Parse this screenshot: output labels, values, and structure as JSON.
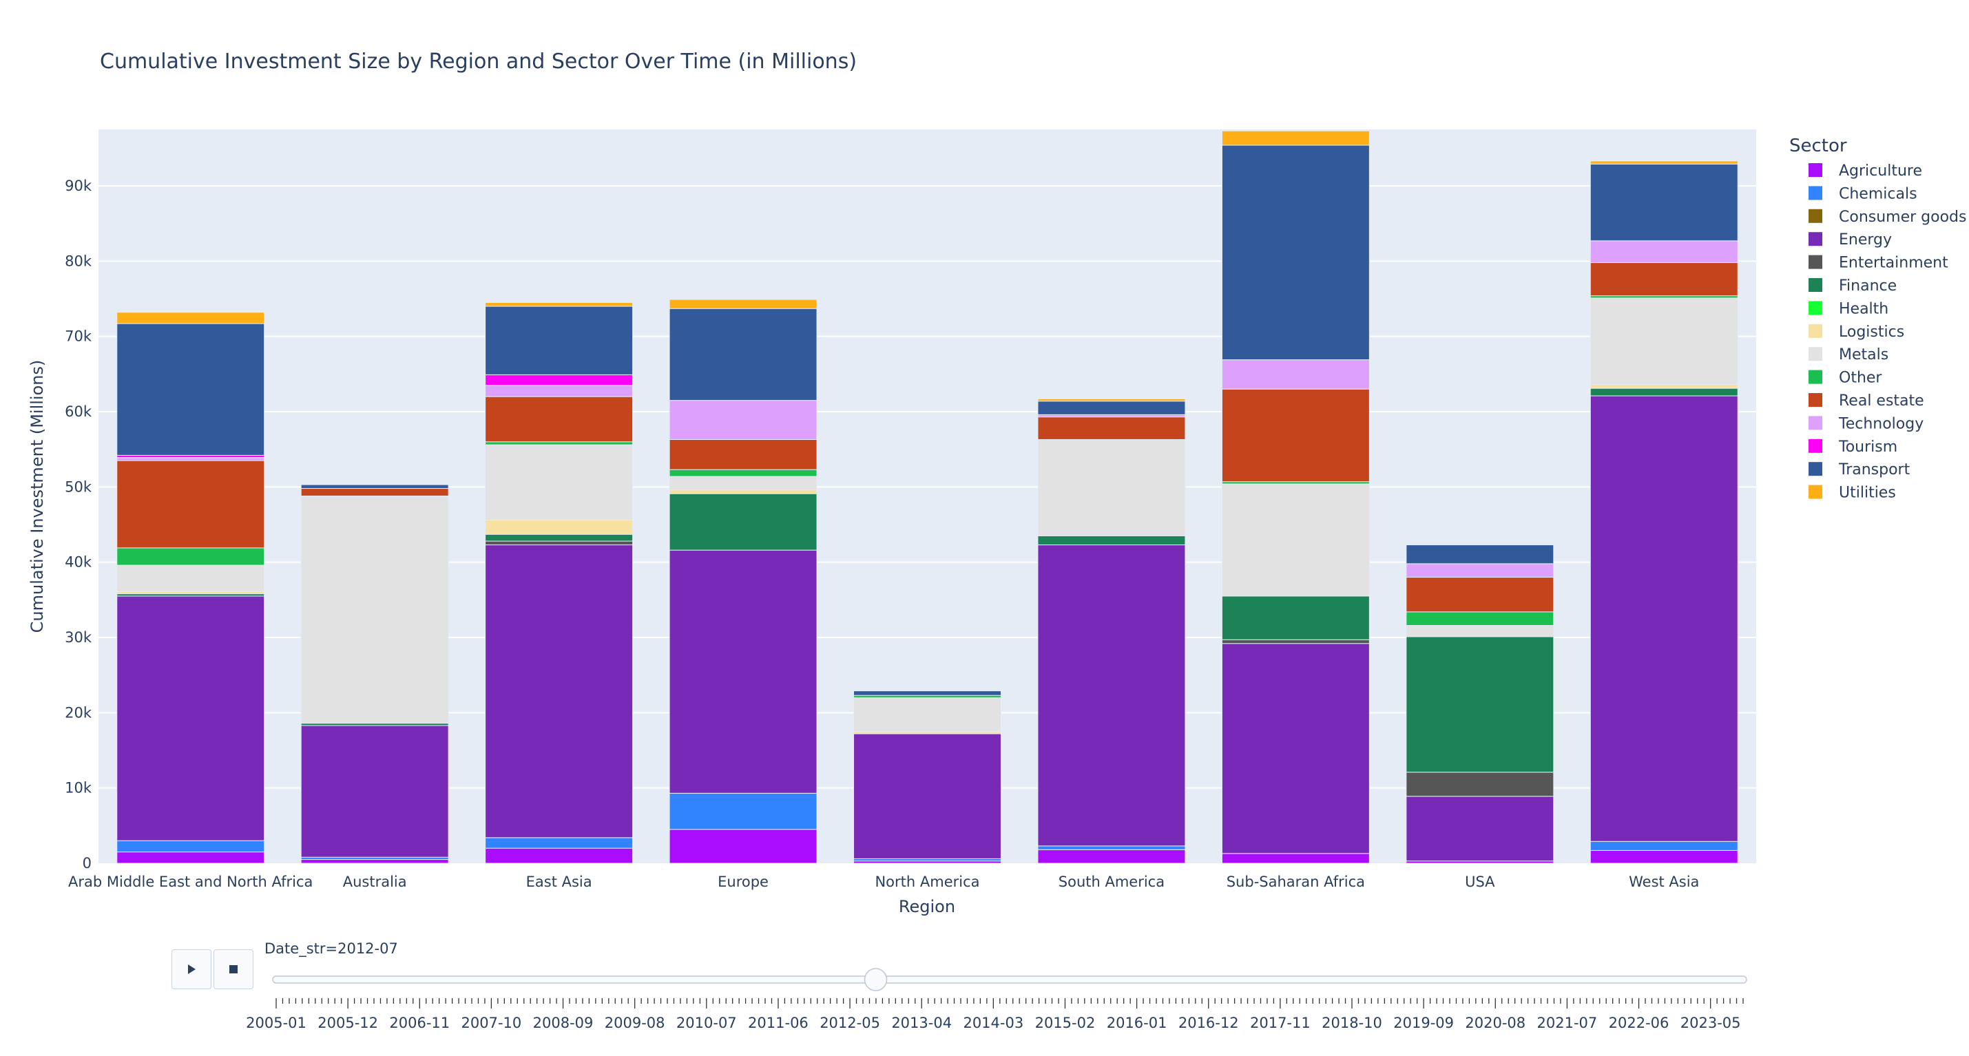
{
  "chart_data": {
    "type": "bar",
    "barmode": "stack",
    "title": "Cumulative Investment Size by Region and Sector Over Time (in Millions)",
    "xlabel": "Region",
    "ylabel": "Cumulative Investment (Millions)",
    "ylim": [
      0,
      97500
    ],
    "yticks": [
      0,
      10000,
      20000,
      30000,
      40000,
      50000,
      60000,
      70000,
      80000,
      90000
    ],
    "ytick_labels": [
      "0",
      "10k",
      "20k",
      "30k",
      "40k",
      "50k",
      "60k",
      "70k",
      "80k",
      "90k"
    ],
    "grid": true,
    "legend": {
      "title": "Sector",
      "placement": "right"
    },
    "categories": [
      "Arab Middle East and North Africa",
      "Australia",
      "East Asia",
      "Europe",
      "North America",
      "South America",
      "Sub-Saharan Africa",
      "USA",
      "West Asia"
    ],
    "series": [
      {
        "name": "Agriculture",
        "color": "#AA0DFE",
        "values": [
          1500,
          500,
          2000,
          4500,
          300,
          1800,
          1300,
          300,
          1700
        ]
      },
      {
        "name": "Chemicals",
        "color": "#3283FE",
        "values": [
          1500,
          300,
          1400,
          4800,
          300,
          500,
          0,
          0,
          1200
        ]
      },
      {
        "name": "Consumer goods",
        "color": "#85660D",
        "values": [
          0,
          0,
          0,
          0,
          0,
          0,
          0,
          0,
          0
        ]
      },
      {
        "name": "Energy",
        "color": "#782AB6",
        "values": [
          32500,
          17500,
          38900,
          32300,
          16600,
          40000,
          27900,
          8600,
          59200
        ]
      },
      {
        "name": "Entertainment",
        "color": "#565656",
        "values": [
          0,
          0,
          500,
          0,
          0,
          0,
          500,
          3200,
          0
        ]
      },
      {
        "name": "Finance",
        "color": "#1C8356",
        "values": [
          300,
          300,
          900,
          7500,
          0,
          1200,
          5800,
          18000,
          1000
        ]
      },
      {
        "name": "Health",
        "color": "#16FF32",
        "values": [
          0,
          0,
          0,
          0,
          0,
          0,
          0,
          0,
          0
        ]
      },
      {
        "name": "Logistics",
        "color": "#F7E1A0",
        "values": [
          300,
          0,
          1900,
          500,
          300,
          0,
          0,
          0,
          500
        ]
      },
      {
        "name": "Metals",
        "color": "#E2E2E2",
        "values": [
          3500,
          30200,
          10000,
          1800,
          4500,
          12800,
          14900,
          1500,
          11500
        ]
      },
      {
        "name": "Other",
        "color": "#1CBE4F",
        "values": [
          2300,
          0,
          400,
          900,
          300,
          0,
          300,
          1800,
          300
        ]
      },
      {
        "name": "Real estate",
        "color": "#C4451C",
        "values": [
          11600,
          1000,
          6000,
          4000,
          0,
          3000,
          12300,
          4600,
          4400
        ]
      },
      {
        "name": "Technology",
        "color": "#DEA0FD",
        "values": [
          400,
          0,
          1500,
          5200,
          0,
          300,
          3900,
          1800,
          2900
        ]
      },
      {
        "name": "Tourism",
        "color": "#FE00FA",
        "values": [
          300,
          0,
          1400,
          0,
          0,
          0,
          0,
          0,
          0
        ]
      },
      {
        "name": "Transport",
        "color": "#325A9B",
        "values": [
          17500,
          500,
          9100,
          12200,
          600,
          1800,
          28500,
          2500,
          10200
        ]
      },
      {
        "name": "Utilities",
        "color": "#FEAF16",
        "values": [
          1500,
          0,
          500,
          1200,
          0,
          300,
          1900,
          0,
          400
        ]
      }
    ]
  },
  "slider": {
    "current_label": "Date_str=2012-07",
    "current_value": "2012-07",
    "position_fraction": 0.4087,
    "tick_labels": [
      "2005-01",
      "2005-12",
      "2006-11",
      "2007-10",
      "2008-09",
      "2009-08",
      "2010-07",
      "2011-06",
      "2012-05",
      "2013-04",
      "2014-03",
      "2015-02",
      "2016-01",
      "2016-12",
      "2017-11",
      "2018-10",
      "2019-09",
      "2020-08",
      "2021-07",
      "2022-06",
      "2023-05"
    ],
    "minor_ticks_per_label": 11
  },
  "controls": {
    "play_icon": "play-icon",
    "stop_icon": "stop-icon"
  },
  "colors": {
    "plot_bg": "#E5ECF6",
    "text": "#2a3f5f",
    "grid": "#ffffff"
  }
}
